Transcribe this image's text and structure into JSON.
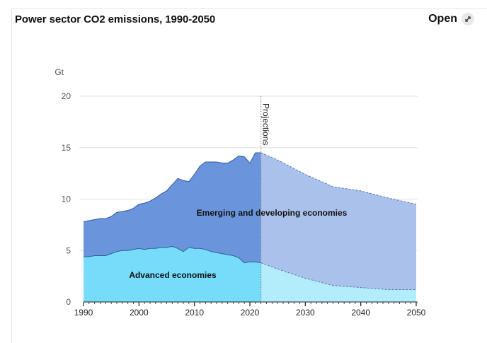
{
  "header": {
    "title": "Power sector CO2 emissions, 1990-2050",
    "open_label": "Open",
    "open_icon": "expand-arrows-icon"
  },
  "chart_data": {
    "type": "area",
    "stacked": true,
    "title": "Power sector CO2 emissions, 1990-2050",
    "ylabel": "Gt",
    "xlim": [
      1990,
      2050
    ],
    "ylim": [
      0,
      20
    ],
    "yticks": [
      0,
      5,
      10,
      15,
      20
    ],
    "xticks": [
      1990,
      2000,
      2010,
      2020,
      2030,
      2040,
      2050
    ],
    "projection_start": 2022,
    "projection_label": "Projections",
    "grid": true,
    "x": [
      1990,
      1991,
      1992,
      1993,
      1994,
      1995,
      1996,
      1997,
      1998,
      1999,
      2000,
      2001,
      2002,
      2003,
      2004,
      2005,
      2006,
      2007,
      2008,
      2009,
      2010,
      2011,
      2012,
      2013,
      2014,
      2015,
      2016,
      2017,
      2018,
      2019,
      2020,
      2021,
      2022,
      2025,
      2030,
      2035,
      2040,
      2045,
      2050
    ],
    "series": [
      {
        "name": "Advanced economies",
        "color": "#76dcfa",
        "projection_color": "#b3ecfb",
        "values": [
          4.4,
          4.4,
          4.5,
          4.5,
          4.5,
          4.7,
          4.9,
          5.0,
          5.0,
          5.1,
          5.2,
          5.1,
          5.2,
          5.2,
          5.3,
          5.3,
          5.4,
          5.2,
          4.9,
          5.3,
          5.2,
          5.2,
          5.1,
          4.9,
          4.8,
          4.7,
          4.6,
          4.5,
          4.3,
          3.8,
          3.9,
          3.9,
          3.8,
          3.2,
          2.3,
          1.6,
          1.4,
          1.2,
          1.2
        ]
      },
      {
        "name": "Emerging and developing economies",
        "color": "#6a95dc",
        "projection_color": "#a9c1eb",
        "values": [
          3.4,
          3.5,
          3.5,
          3.6,
          3.6,
          3.6,
          3.8,
          3.8,
          3.9,
          4.0,
          4.3,
          4.5,
          4.6,
          4.9,
          5.2,
          5.5,
          6.0,
          6.8,
          6.9,
          6.4,
          7.2,
          8.0,
          8.5,
          8.7,
          8.8,
          8.8,
          8.9,
          9.3,
          9.9,
          10.3,
          9.6,
          10.6,
          10.7,
          10.6,
          10.1,
          9.6,
          9.4,
          8.9,
          8.3
        ]
      }
    ]
  }
}
